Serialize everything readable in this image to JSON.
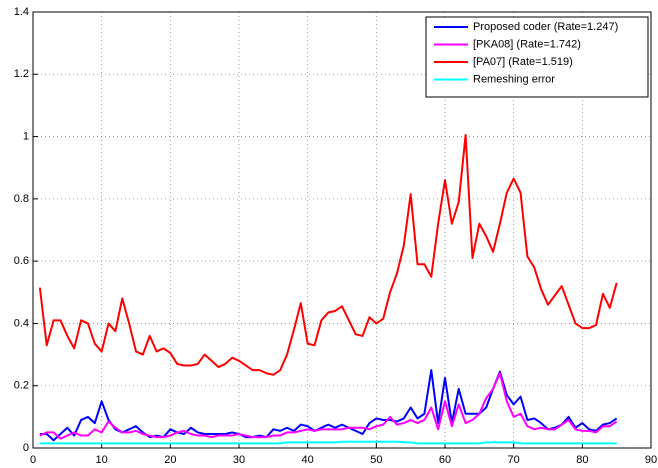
{
  "chart_data": {
    "type": "line",
    "x": [
      1,
      2,
      3,
      4,
      5,
      6,
      7,
      8,
      9,
      10,
      11,
      12,
      13,
      14,
      15,
      16,
      17,
      18,
      19,
      20,
      21,
      22,
      23,
      24,
      25,
      26,
      27,
      28,
      29,
      30,
      31,
      32,
      33,
      34,
      35,
      36,
      37,
      38,
      39,
      40,
      41,
      42,
      43,
      44,
      45,
      46,
      47,
      48,
      49,
      50,
      51,
      52,
      53,
      54,
      55,
      56,
      57,
      58,
      59,
      60,
      61,
      62,
      63,
      64,
      65,
      66,
      67,
      68,
      69,
      70,
      71,
      72,
      73,
      74,
      75,
      76,
      77,
      78,
      79,
      80,
      81,
      82,
      83,
      84,
      85
    ],
    "series": [
      {
        "name": "Proposed coder (Rate=1.247)",
        "color": "#0000ff",
        "values": [
          0.045,
          0.045,
          0.025,
          0.045,
          0.065,
          0.04,
          0.09,
          0.1,
          0.08,
          0.15,
          0.09,
          0.06,
          0.05,
          0.06,
          0.07,
          0.05,
          0.035,
          0.04,
          0.035,
          0.06,
          0.05,
          0.045,
          0.065,
          0.05,
          0.045,
          0.045,
          0.045,
          0.045,
          0.05,
          0.045,
          0.035,
          0.035,
          0.04,
          0.035,
          0.06,
          0.055,
          0.065,
          0.055,
          0.075,
          0.07,
          0.055,
          0.065,
          0.075,
          0.065,
          0.075,
          0.065,
          0.055,
          0.045,
          0.08,
          0.095,
          0.09,
          0.09,
          0.085,
          0.095,
          0.13,
          0.095,
          0.11,
          0.25,
          0.08,
          0.225,
          0.08,
          0.19,
          0.11,
          0.11,
          0.11,
          0.13,
          0.19,
          0.245,
          0.17,
          0.14,
          0.165,
          0.09,
          0.095,
          0.08,
          0.06,
          0.065,
          0.075,
          0.1,
          0.065,
          0.08,
          0.06,
          0.055,
          0.075,
          0.08,
          0.095
        ]
      },
      {
        "name": "[PKA08] (Rate=1.742)",
        "color": "#ff00ff",
        "values": [
          0.04,
          0.05,
          0.05,
          0.03,
          0.04,
          0.05,
          0.04,
          0.04,
          0.06,
          0.05,
          0.085,
          0.065,
          0.05,
          0.05,
          0.055,
          0.045,
          0.04,
          0.035,
          0.035,
          0.04,
          0.05,
          0.055,
          0.045,
          0.04,
          0.04,
          0.035,
          0.04,
          0.04,
          0.04,
          0.045,
          0.04,
          0.035,
          0.035,
          0.035,
          0.04,
          0.04,
          0.05,
          0.05,
          0.055,
          0.06,
          0.055,
          0.06,
          0.06,
          0.06,
          0.06,
          0.065,
          0.065,
          0.065,
          0.06,
          0.07,
          0.075,
          0.1,
          0.075,
          0.08,
          0.09,
          0.08,
          0.09,
          0.13,
          0.06,
          0.15,
          0.07,
          0.14,
          0.08,
          0.09,
          0.11,
          0.16,
          0.19,
          0.24,
          0.15,
          0.1,
          0.11,
          0.07,
          0.06,
          0.065,
          0.06,
          0.06,
          0.075,
          0.09,
          0.06,
          0.055,
          0.055,
          0.05,
          0.07,
          0.07,
          0.085
        ]
      },
      {
        "name": "[PA07] (Rate=1.519)",
        "color": "#ff0000",
        "values": [
          0.515,
          0.33,
          0.41,
          0.41,
          0.36,
          0.32,
          0.41,
          0.4,
          0.335,
          0.31,
          0.4,
          0.375,
          0.48,
          0.4,
          0.31,
          0.3,
          0.36,
          0.31,
          0.32,
          0.305,
          0.27,
          0.265,
          0.265,
          0.27,
          0.3,
          0.28,
          0.26,
          0.27,
          0.29,
          0.28,
          0.265,
          0.25,
          0.25,
          0.24,
          0.235,
          0.25,
          0.3,
          0.38,
          0.465,
          0.335,
          0.33,
          0.41,
          0.435,
          0.44,
          0.455,
          0.41,
          0.365,
          0.36,
          0.42,
          0.4,
          0.415,
          0.5,
          0.56,
          0.65,
          0.815,
          0.59,
          0.59,
          0.55,
          0.72,
          0.86,
          0.72,
          0.79,
          1.005,
          0.61,
          0.72,
          0.68,
          0.63,
          0.72,
          0.82,
          0.865,
          0.82,
          0.615,
          0.58,
          0.51,
          0.46,
          0.49,
          0.52,
          0.46,
          0.4,
          0.385,
          0.385,
          0.395,
          0.495,
          0.45,
          0.53
        ]
      },
      {
        "name": "Remeshing error",
        "color": "#00ffff",
        "values": [
          0.015,
          0.015,
          0.015,
          0.015,
          0.015,
          0.015,
          0.015,
          0.015,
          0.015,
          0.015,
          0.015,
          0.015,
          0.015,
          0.015,
          0.015,
          0.015,
          0.015,
          0.015,
          0.015,
          0.015,
          0.015,
          0.015,
          0.015,
          0.015,
          0.015,
          0.015,
          0.015,
          0.015,
          0.015,
          0.015,
          0.015,
          0.015,
          0.015,
          0.015,
          0.015,
          0.015,
          0.018,
          0.018,
          0.018,
          0.018,
          0.018,
          0.018,
          0.018,
          0.018,
          0.02,
          0.02,
          0.02,
          0.02,
          0.02,
          0.02,
          0.02,
          0.02,
          0.02,
          0.018,
          0.018,
          0.015,
          0.015,
          0.015,
          0.015,
          0.015,
          0.015,
          0.015,
          0.015,
          0.015,
          0.015,
          0.018,
          0.018,
          0.018,
          0.018,
          0.018,
          0.015,
          0.015,
          0.015,
          0.015,
          0.015,
          0.015,
          0.015,
          0.015,
          0.015,
          0.015,
          0.015,
          0.015,
          0.015,
          0.015,
          0.015
        ]
      }
    ],
    "xlim": [
      0,
      90
    ],
    "xticks": [
      0,
      10,
      20,
      30,
      40,
      50,
      60,
      70,
      80,
      90
    ],
    "ylim": [
      0,
      1.4
    ],
    "yticks": [
      0,
      0.2,
      0.4,
      0.6,
      0.8,
      1,
      1.2,
      1.4
    ],
    "grid": true,
    "legend": "top-right"
  }
}
